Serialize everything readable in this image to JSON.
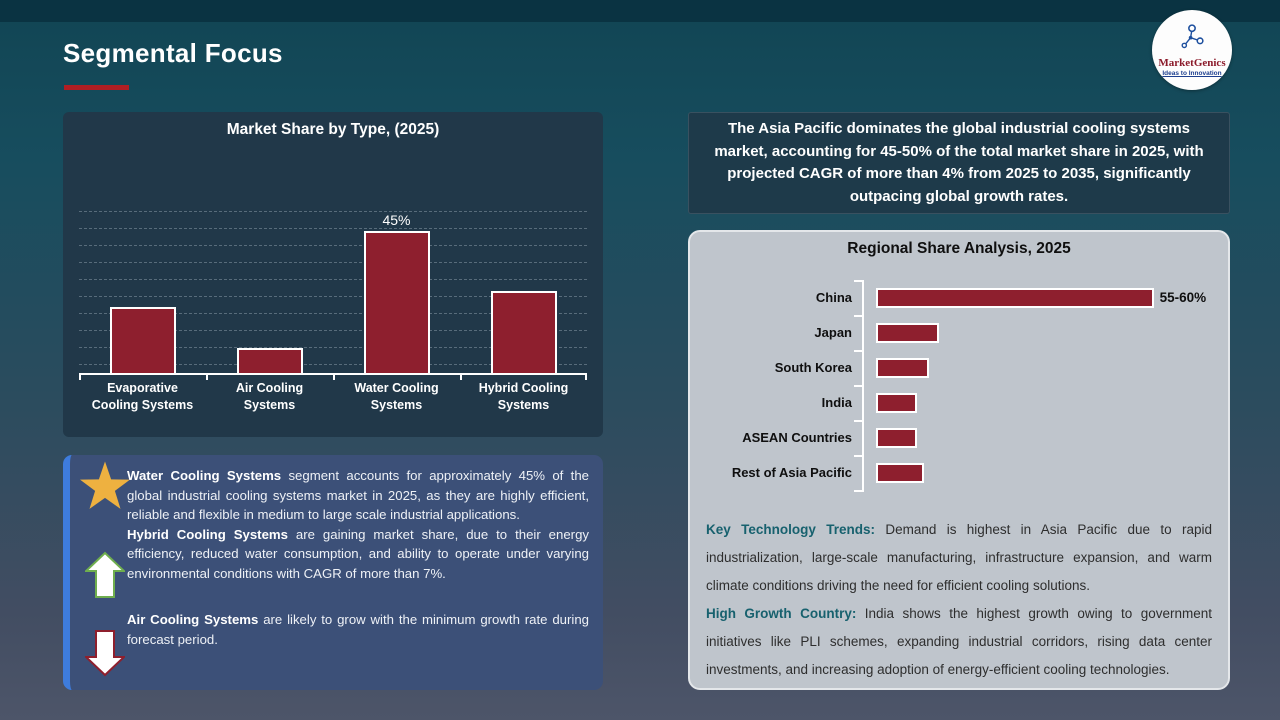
{
  "slide": {
    "title": "Segmental Focus"
  },
  "logo": {
    "name": "MarketGenics",
    "tagline": "Ideas to Innovation"
  },
  "colors": {
    "accent_red": "#b01e23",
    "bar_red": "#8e1f2e",
    "accent_blue": "#3e7cdd",
    "gold_star": "#eeb140",
    "teal_label": "#17616e"
  },
  "apac_box": {
    "text": "The Asia Pacific dominates the global industrial cooling systems market, accounting for 45-50% of the total market share in 2025, with projected CAGR of more than 4% from 2025 to 2035, significantly outpacing global growth rates."
  },
  "chart_data": [
    {
      "type": "bar",
      "orientation": "vertical",
      "title": "Market Share by Type, (2025)",
      "categories": [
        "Evaporative Cooling Systems",
        "Air Cooling Systems",
        "Water Cooling Systems",
        "Hybrid Cooling Systems"
      ],
      "values": [
        21,
        8,
        45,
        26
      ],
      "data_labels": [
        "",
        "",
        "45%",
        ""
      ],
      "ylim": [
        0,
        70
      ],
      "grid": "dashed-horizontal",
      "legend": "none",
      "bar_color": "#8e1f2e",
      "bar_border": "#ffffff"
    },
    {
      "type": "bar",
      "orientation": "horizontal",
      "title": "Regional Share Analysis, 2025",
      "categories": [
        "China",
        "Japan",
        "South Korea",
        "India",
        "ASEAN Countries",
        "Rest of Asia Pacific"
      ],
      "values": [
        57.5,
        13,
        11,
        8.5,
        8.5,
        10
      ],
      "data_labels": [
        "55-60%",
        "",
        "",
        "",
        "",
        ""
      ],
      "xlim": [
        0,
        70
      ],
      "grid": "off",
      "legend": "none",
      "bar_color": "#8e1f2e",
      "bar_border": "#ffffff"
    }
  ],
  "insight": {
    "items": [
      {
        "icon": "star",
        "lead": "Water Cooling Systems",
        "text": " segment accounts for approximately 45% of the global industrial cooling systems market in 2025, as they are highly efficient, reliable and flexible in medium to large scale industrial applications."
      },
      {
        "icon": "up-arrow",
        "lead": "Hybrid Cooling Systems",
        "text": " are gaining market share, due to their energy efficiency, reduced water consumption, and ability to operate under varying environmental conditions with CAGR of more than 7%."
      },
      {
        "icon": "down-arrow",
        "lead": "Air Cooling Systems",
        "text": " are likely to grow with the minimum growth rate during forecast period."
      }
    ]
  },
  "regional_notes": {
    "trends_label": "Key Technology Trends:",
    "trends_text": " Demand is highest in Asia Pacific due to rapid industrialization, large-scale manufacturing, infrastructure expansion, and warm climate conditions driving the need for efficient cooling solutions.",
    "growth_label": "High Growth Country:",
    "growth_text": " India shows the highest growth owing to government initiatives like PLI schemes, expanding industrial corridors, rising data center investments, and increasing adoption of energy-efficient cooling technologies."
  }
}
